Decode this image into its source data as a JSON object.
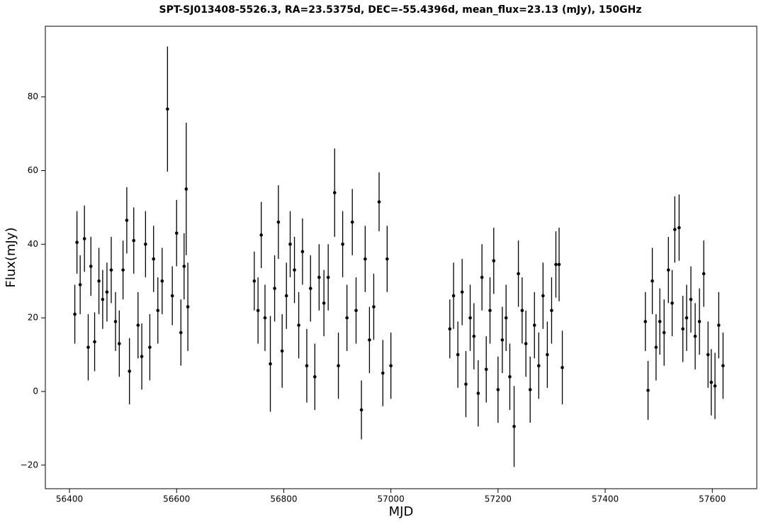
{
  "chart_data": {
    "type": "errorbar",
    "title": "SPT-SJ013408-5526.3, RA=23.5375d, DEC=-55.4396d, mean_flux=23.13 (mJy), 150GHz",
    "xlabel": "MJD",
    "ylabel": "Flux(mJy)",
    "color": "#000000",
    "xlim": [
      56355,
      57683
    ],
    "ylim": [
      -26.4,
      99.2
    ],
    "xticks": [
      56400,
      56600,
      56800,
      57000,
      57200,
      57400,
      57600
    ],
    "yticks": [
      {
        "value": -20,
        "label": "−20"
      },
      0,
      20,
      40,
      60,
      80
    ],
    "x": [
      56410,
      56414,
      56420,
      56428,
      56435,
      56440,
      56447,
      56455,
      56462,
      56470,
      56478,
      56486,
      56493,
      56500,
      56507,
      56512,
      56520,
      56528,
      56535,
      56542,
      56550,
      56557,
      56565,
      56573,
      56583,
      56592,
      56600,
      56608,
      56614,
      56618,
      56621,
      56745,
      56752,
      56758,
      56765,
      56775,
      56783,
      56790,
      56797,
      56805,
      56812,
      56820,
      56828,
      56835,
      56843,
      56850,
      56858,
      56866,
      56875,
      56883,
      56895,
      56902,
      56910,
      56918,
      56928,
      56935,
      56945,
      56952,
      56960,
      56968,
      56978,
      56985,
      56993,
      57000,
      57110,
      57117,
      57125,
      57133,
      57140,
      57148,
      57155,
      57163,
      57170,
      57178,
      57185,
      57192,
      57200,
      57208,
      57215,
      57222,
      57230,
      57238,
      57245,
      57252,
      57260,
      57268,
      57276,
      57284,
      57292,
      57300,
      57308,
      57314,
      57320,
      57475,
      57480,
      57488,
      57495,
      57502,
      57510,
      57518,
      57525,
      57530,
      57538,
      57545,
      57552,
      57560,
      57568,
      57576,
      57584,
      57592,
      57598,
      57605,
      57612,
      57620
    ],
    "values": [
      21,
      40.5,
      29,
      41.5,
      12,
      34,
      13.5,
      30,
      25,
      27,
      33,
      19,
      13,
      33,
      46.5,
      5.5,
      41,
      18,
      9.5,
      40,
      12,
      36,
      22,
      30,
      76.7,
      26,
      43,
      16,
      34,
      55,
      23,
      30,
      22,
      42.5,
      20,
      7.5,
      28,
      46,
      11,
      26,
      40,
      33,
      18,
      38,
      7,
      28,
      4,
      31,
      24,
      31,
      54,
      7,
      40,
      20,
      46,
      22,
      -5,
      36,
      14,
      23,
      51.5,
      5,
      36,
      7,
      17,
      26,
      10,
      27,
      2,
      20,
      15,
      -0.5,
      31,
      6,
      22,
      35.5,
      0.5,
      14,
      20,
      4,
      -9.5,
      32,
      22,
      13,
      0.5,
      18,
      7,
      26,
      10,
      22,
      34.5,
      34.5,
      6.5,
      19,
      0.3,
      30,
      12,
      19,
      16,
      33,
      24,
      44,
      44.5,
      17,
      20,
      25,
      15,
      19,
      32,
      10,
      2.5,
      1.5,
      18,
      7
    ],
    "errors": [
      8,
      8.5,
      8,
      9,
      9,
      8,
      8,
      9,
      8,
      8,
      9,
      8,
      9,
      8,
      9,
      9,
      9,
      9,
      9,
      9,
      9,
      9,
      9,
      9,
      17,
      8,
      9,
      9,
      9,
      18,
      12,
      8,
      9,
      9,
      9,
      13,
      9,
      10,
      10,
      9,
      9,
      9,
      9,
      9,
      10,
      9,
      9,
      9,
      9,
      9,
      12,
      9,
      9,
      9,
      9,
      9,
      8,
      9,
      9,
      9,
      8,
      9,
      9,
      9,
      8,
      9,
      9,
      9,
      9,
      9,
      9,
      9,
      9,
      9,
      9,
      9,
      9,
      9,
      9,
      9,
      11,
      9,
      9,
      9,
      9,
      9,
      9,
      9,
      9,
      9,
      9,
      10,
      10,
      8,
      8,
      9,
      9,
      9,
      9,
      9,
      9,
      9,
      9,
      9,
      9,
      9,
      9,
      9,
      9,
      9,
      9,
      9,
      9,
      9
    ]
  }
}
